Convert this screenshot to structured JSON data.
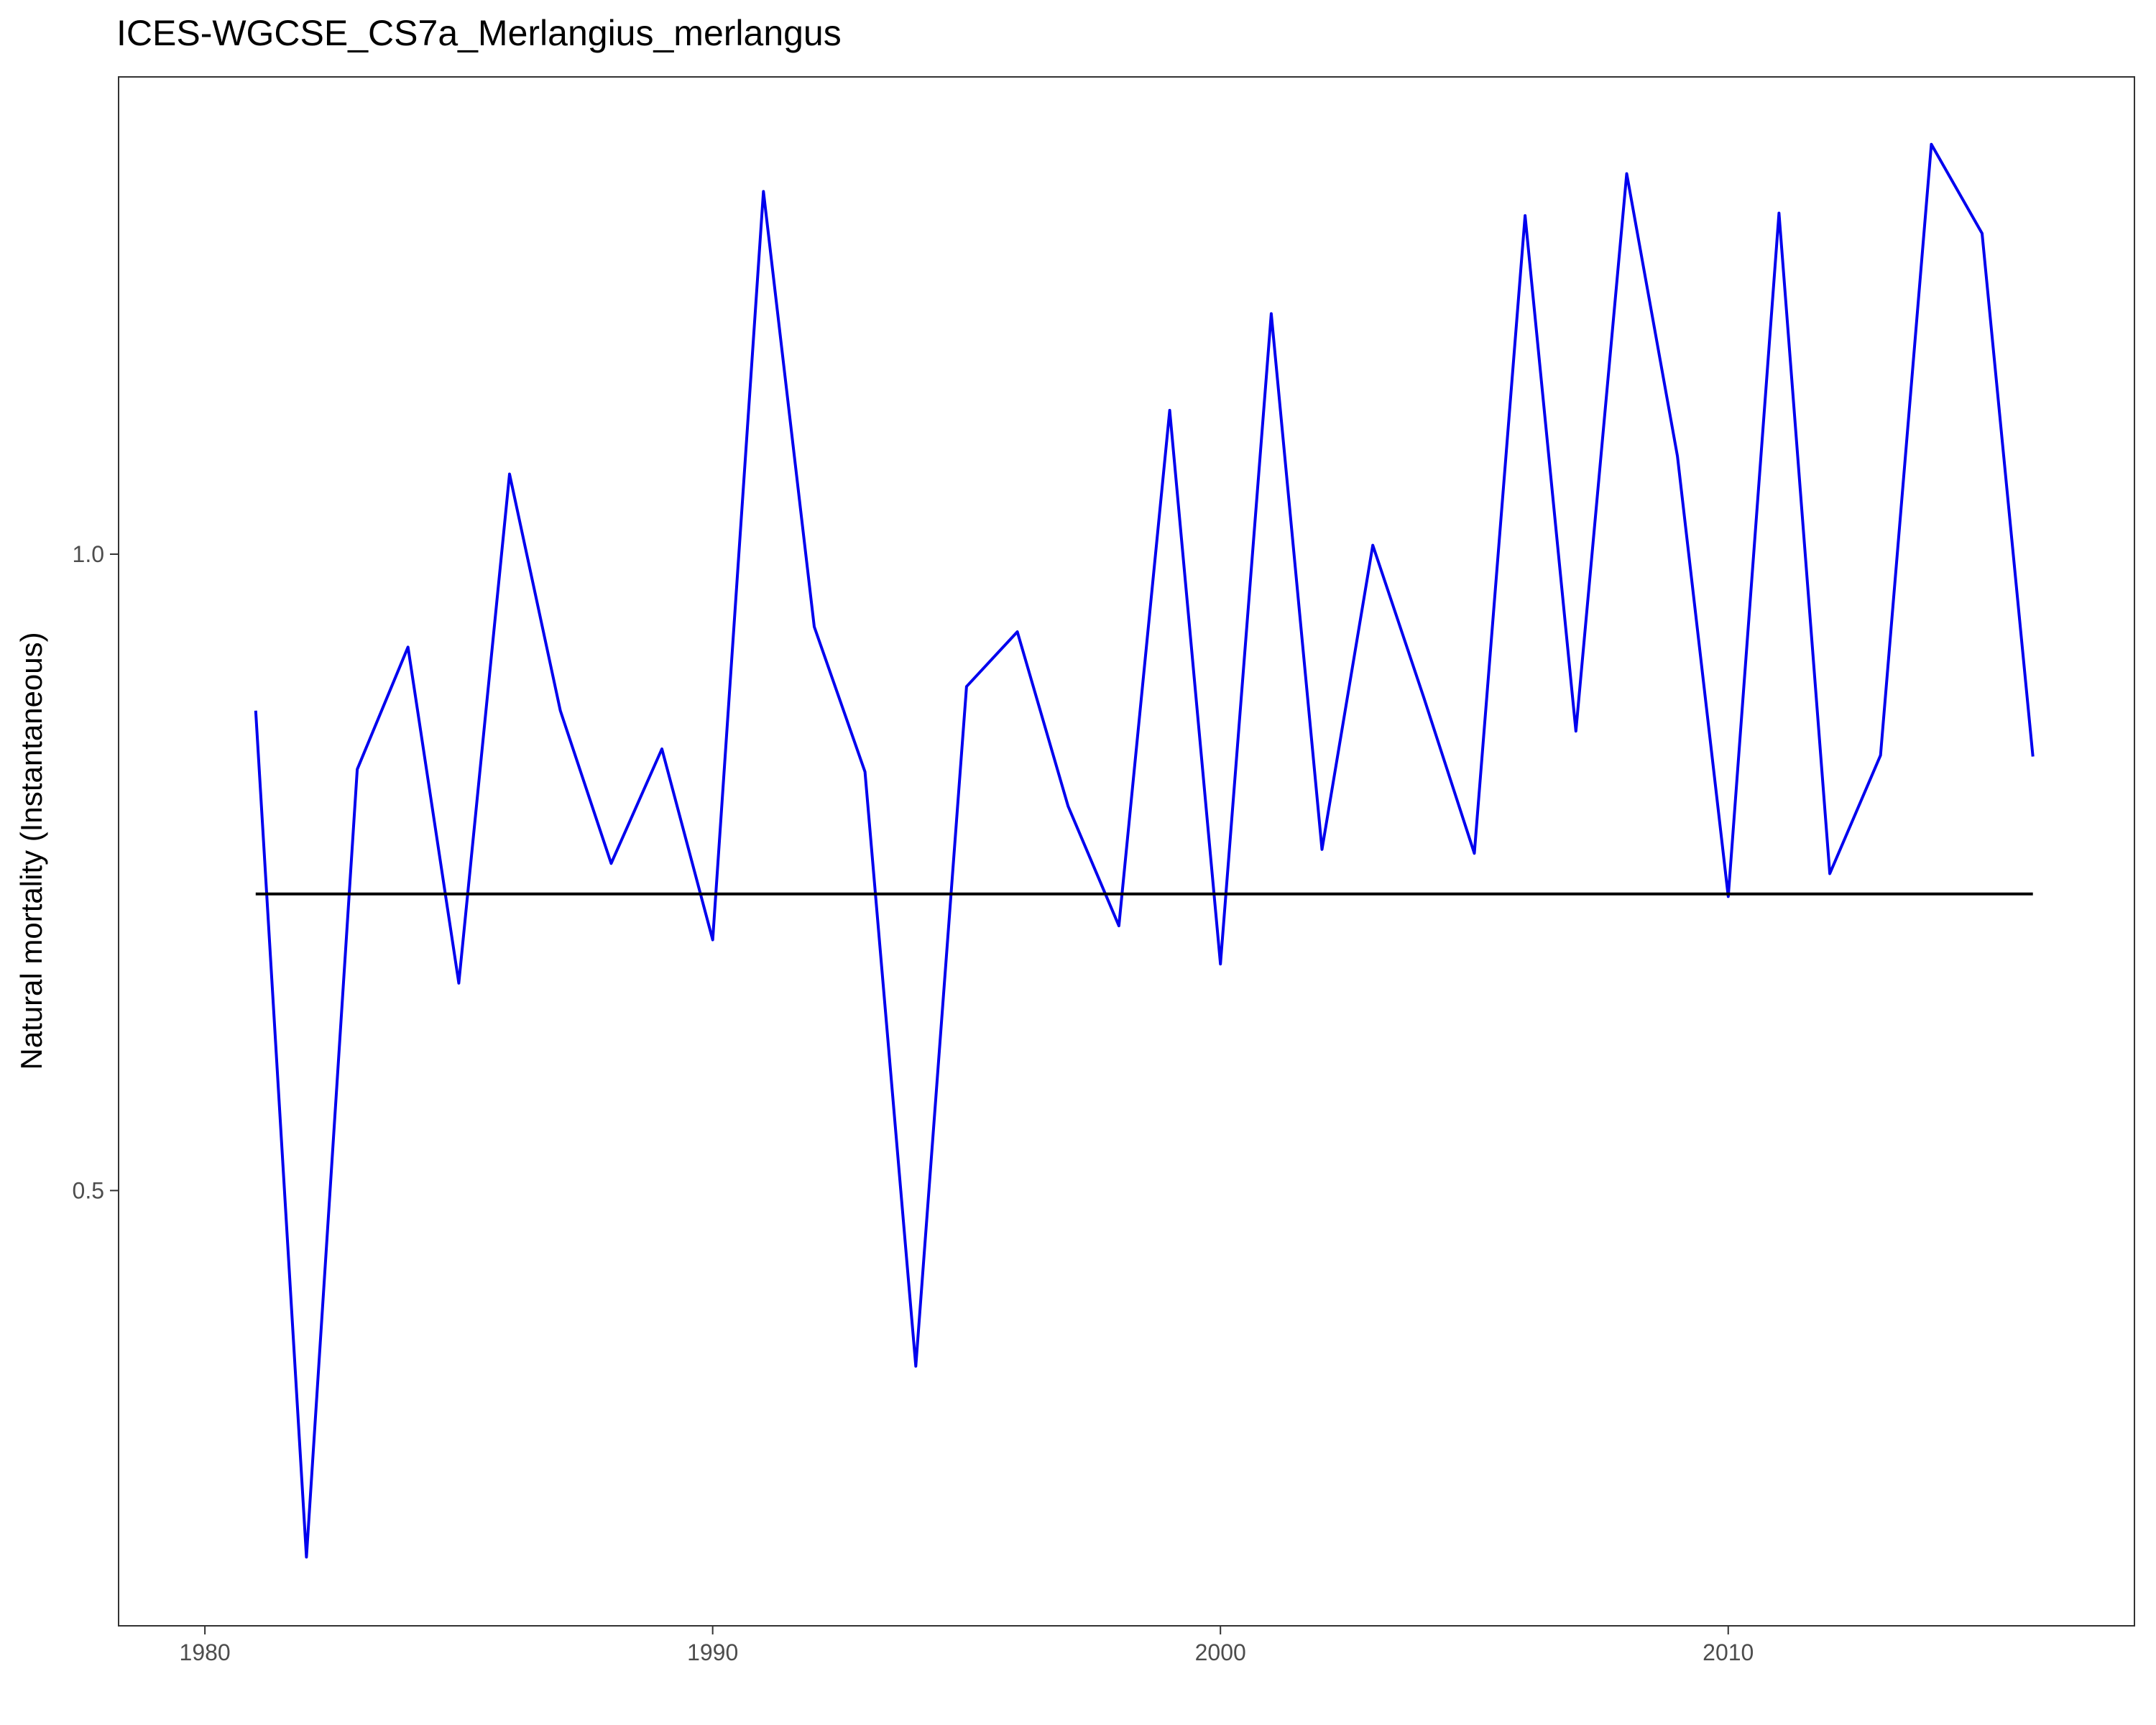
{
  "chart_data": {
    "type": "line",
    "title": "ICES-WGCSE_CS7a_Merlangius_merlangus",
    "xlabel": "",
    "ylabel": "Natural mortality (Instantaneous)",
    "xlim": [
      1978.3,
      2018
    ],
    "ylim": [
      0.158,
      1.375
    ],
    "x_ticks": [
      1980,
      1990,
      2000,
      2010
    ],
    "y_ticks": [
      0.5,
      1.0
    ],
    "x_tick_labels": [
      "1980",
      "1990",
      "2000",
      "2010"
    ],
    "y_tick_labels": [
      "0.5",
      "1.0"
    ],
    "grid": false,
    "legend": "none",
    "series": [
      {
        "color": "#0000ee",
        "x": [
          1981,
          1982,
          1983,
          1984,
          1985,
          1986,
          1987,
          1988,
          1989,
          1990,
          1991,
          1992,
          1993,
          1994,
          1995,
          1996,
          1997,
          1998,
          1999,
          2000,
          2001,
          2002,
          2003,
          2004,
          2005,
          2006,
          2007,
          2008,
          2009,
          2010,
          2011,
          2012,
          2013,
          2014,
          2015,
          2016
        ],
        "values": [
          0.877,
          0.212,
          0.831,
          0.927,
          0.663,
          1.063,
          0.877,
          0.757,
          0.847,
          0.697,
          1.285,
          0.943,
          0.829,
          0.362,
          0.896,
          0.939,
          0.802,
          0.708,
          1.113,
          0.678,
          1.189,
          0.768,
          1.007,
          0.888,
          0.765,
          1.266,
          0.861,
          1.299,
          1.077,
          0.731,
          1.268,
          0.749,
          0.842,
          1.322,
          1.252,
          0.841
        ]
      },
      {
        "color": "#000000",
        "x": [
          1981,
          2016
        ],
        "values": [
          0.733,
          0.733
        ]
      }
    ]
  }
}
